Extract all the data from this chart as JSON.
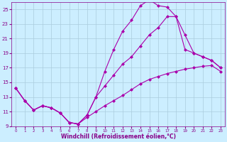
{
  "background_color": "#cceeff",
  "grid_color": "#aaccdd",
  "line_color": "#aa00aa",
  "xlabel": "Windchill (Refroidissement éolien,°C)",
  "xlabel_color": "#880088",
  "tick_color": "#880088",
  "xlim": [
    -0.5,
    23.5
  ],
  "ylim": [
    9,
    26
  ],
  "yticks": [
    9,
    11,
    13,
    15,
    17,
    19,
    21,
    23,
    25
  ],
  "xticks": [
    0,
    1,
    2,
    3,
    4,
    5,
    6,
    7,
    8,
    9,
    10,
    11,
    12,
    13,
    14,
    15,
    16,
    17,
    18,
    19,
    20,
    21,
    22,
    23
  ],
  "line1_x": [
    0,
    1,
    2,
    3,
    4,
    5,
    6,
    7,
    8,
    9,
    10,
    11,
    12,
    13,
    14,
    15,
    16,
    17,
    18,
    19,
    20,
    21,
    22,
    23
  ],
  "line1_y": [
    14.2,
    12.5,
    11.2,
    11.8,
    11.5,
    10.8,
    9.5,
    9.3,
    10.2,
    11.0,
    11.8,
    12.5,
    13.2,
    14.0,
    14.8,
    15.4,
    15.8,
    16.2,
    16.5,
    16.8,
    17.0,
    17.2,
    17.3,
    16.5
  ],
  "line2_x": [
    0,
    1,
    2,
    3,
    4,
    5,
    6,
    7,
    8,
    9,
    10,
    11,
    12,
    13,
    14,
    15,
    16,
    17,
    18,
    19,
    20,
    21,
    22,
    23
  ],
  "line2_y": [
    14.2,
    12.5,
    11.2,
    11.8,
    11.5,
    10.8,
    9.5,
    9.3,
    10.5,
    13.0,
    16.5,
    19.5,
    22.0,
    23.5,
    25.5,
    26.3,
    25.5,
    25.3,
    24.0,
    21.5,
    19.0,
    18.5,
    18.0,
    17.0
  ],
  "line3_x": [
    0,
    1,
    2,
    3,
    4,
    5,
    6,
    7,
    8,
    9,
    10,
    11,
    12,
    13,
    14,
    15,
    16,
    17,
    18,
    19,
    20,
    21,
    22,
    23
  ],
  "line3_y": [
    14.2,
    12.5,
    11.2,
    11.8,
    11.5,
    10.8,
    9.5,
    9.3,
    10.5,
    13.0,
    14.5,
    16.0,
    17.5,
    18.5,
    20.0,
    21.5,
    22.5,
    24.0,
    24.0,
    19.5,
    19.0,
    18.5,
    18.0,
    17.0
  ],
  "marker": "D",
  "markersize": 2.0,
  "linewidth": 0.8
}
